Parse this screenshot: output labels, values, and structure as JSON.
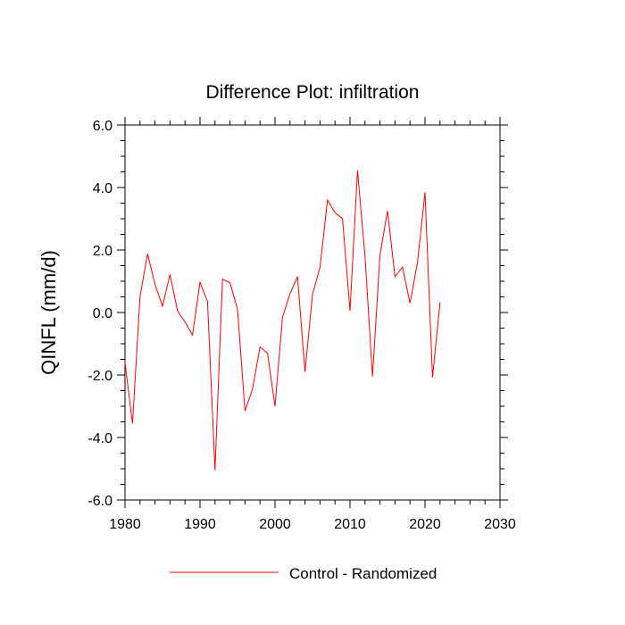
{
  "chart_data": {
    "type": "line",
    "title": "Difference Plot: infiltration",
    "xlabel": "",
    "ylabel": "QINFL  (mm/d)",
    "xlim": [
      1980,
      2030
    ],
    "ylim": [
      -6.0,
      6.0
    ],
    "x_ticks": [
      1980,
      1990,
      2000,
      2010,
      2020,
      2030
    ],
    "x_tick_labels": [
      "1980",
      "1990",
      "2000",
      "2010",
      "2020",
      "2030"
    ],
    "y_ticks": [
      -6.0,
      -4.0,
      -2.0,
      0.0,
      2.0,
      4.0,
      6.0
    ],
    "y_tick_labels": [
      "-6.0",
      "-4.0",
      "-2.0",
      "0.0",
      "2.0",
      "4.0",
      "6.0"
    ],
    "grid": false,
    "legend_position": "bottom-center",
    "series": [
      {
        "name": "Control - Randomized",
        "color": "#ff0000",
        "x": [
          1980,
          1981,
          1982,
          1983,
          1984,
          1985,
          1986,
          1987,
          1988,
          1989,
          1990,
          1991,
          1992,
          1993,
          1994,
          1995,
          1996,
          1997,
          1998,
          1999,
          2000,
          2001,
          2002,
          2003,
          2004,
          2005,
          2006,
          2007,
          2008,
          2009,
          2010,
          2011,
          2012,
          2013,
          2014,
          2015,
          2016,
          2017,
          2018,
          2019,
          2020,
          2021,
          2022
        ],
        "values": [
          -1.6,
          -3.55,
          0.5,
          1.88,
          0.9,
          0.2,
          1.22,
          0.05,
          -0.3,
          -0.72,
          0.97,
          0.35,
          -5.05,
          1.07,
          0.95,
          0.1,
          -3.15,
          -2.45,
          -1.1,
          -1.3,
          -3.0,
          -0.15,
          0.6,
          1.15,
          -1.9,
          0.58,
          1.45,
          3.6,
          3.2,
          3.0,
          0.05,
          4.55,
          1.8,
          -2.05,
          1.85,
          3.25,
          1.15,
          1.45,
          0.3,
          1.6,
          3.85,
          -2.08,
          0.32
        ]
      }
    ]
  }
}
